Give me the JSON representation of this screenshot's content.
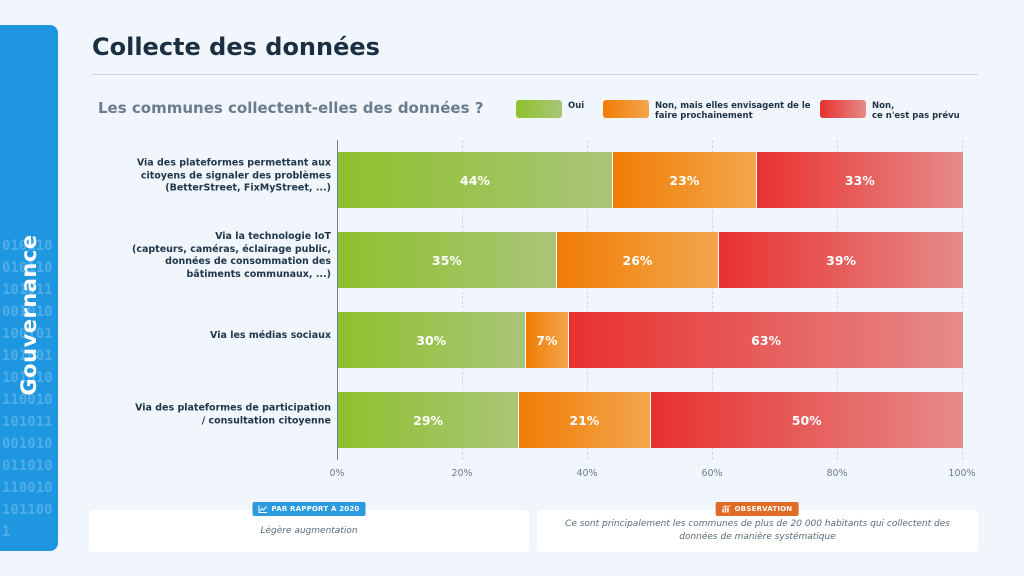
{
  "sidebar": {
    "label": "Gouvernance",
    "binary": "0101100101101010110010101001011010011010101100101010110010100110101100101011001"
  },
  "page": {
    "title": "Collecte des données"
  },
  "colors": {
    "oui": [
      "#8ec12c",
      "#a9c578"
    ],
    "envisage": [
      "#f07d05",
      "#f3a64c"
    ],
    "non": [
      "#e8312f",
      "#e58b89"
    ],
    "badge_left": "#2b9be0",
    "badge_right": "#e06b25"
  },
  "chart_data": {
    "type": "bar",
    "orientation": "horizontal",
    "stacked": true,
    "title": "Les communes collectent-elles des données ?",
    "categories": [
      [
        "Via des plateformes permettant aux",
        "citoyens de signaler des problèmes",
        "(BetterStreet, FixMyStreet, ...)"
      ],
      [
        "Via la technologie IoT",
        "(capteurs, caméras, éclairage public,",
        "données de consommation des",
        "bâtiments communaux, ...)"
      ],
      [
        "Via les médias sociaux"
      ],
      [
        "Via des plateformes de participation",
        "/ consultation citoyenne"
      ]
    ],
    "series": [
      {
        "name": "Oui",
        "values": [
          44,
          35,
          30,
          29
        ]
      },
      {
        "name": "Non, mais elles envisagent de le faire prochainement",
        "values": [
          23,
          26,
          7,
          21
        ]
      },
      {
        "name": "Non, ce n'est pas prévu",
        "values": [
          33,
          39,
          63,
          50
        ]
      }
    ],
    "legend_lines": [
      [
        "Oui"
      ],
      [
        "Non, mais elles envisagent de le",
        "faire prochainement"
      ],
      [
        "Non,",
        "ce n'est pas prévu"
      ]
    ],
    "xlim": [
      0,
      100
    ],
    "xticks": [
      0,
      20,
      40,
      60,
      80,
      100
    ],
    "tick_suffix": "%",
    "value_suffix": "%",
    "grid": true
  },
  "notes": {
    "left": {
      "badge": "PAR RAPPORT À 2020",
      "text": "Légère augmentation",
      "icon": "line-chart-icon"
    },
    "right": {
      "badge": "OBSERVATION",
      "text": "Ce sont principalement les communes de plus de 20 000 habitants qui collectent des données de manière systématique",
      "icon": "bar-chart-icon"
    }
  }
}
